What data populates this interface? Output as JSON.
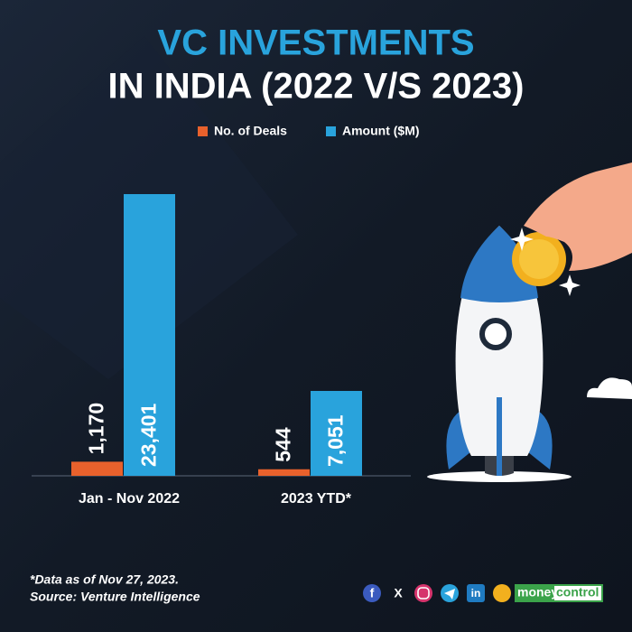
{
  "chart_data": {
    "type": "bar",
    "title": "VC INVESTMENTS",
    "subtitle": "IN INDIA (2022 V/S 2023)",
    "categories": [
      "Jan - Nov 2022",
      "2023 YTD*"
    ],
    "series": [
      {
        "name": "No. of Deals",
        "color": "#e8612c",
        "values": [
          1170,
          544
        ],
        "value_labels": [
          "1,170",
          "544"
        ]
      },
      {
        "name": "Amount ($M)",
        "color": "#29a3dc",
        "values": [
          23401,
          7051
        ],
        "value_labels": [
          "23,401",
          "7,051"
        ]
      }
    ],
    "legend": "top"
  },
  "footnotes": [
    "*Data as of Nov 27, 2023.",
    "Source: Venture Intelligence"
  ],
  "brand": {
    "logo": [
      "money",
      "control"
    ],
    "icons": [
      "f",
      "X",
      "in"
    ]
  }
}
